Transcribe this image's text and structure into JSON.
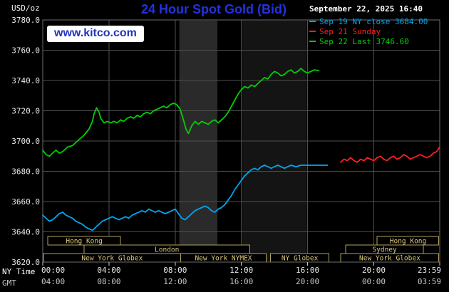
{
  "header": {
    "units": "USD/oz",
    "title": "24 Hour Spot Gold (Bid)",
    "datetime": "September 22, 2025 16:40",
    "watermark": "www.kitco.com"
  },
  "legend": {
    "items": [
      {
        "label": "Sep 19 NY close 3684.00",
        "color": "#00a6f0"
      },
      {
        "label": "Sep 21 Sunday",
        "color": "#ff2020"
      },
      {
        "label": "Sep 22 Last 3746.60",
        "color": "#00d000"
      }
    ]
  },
  "footer": {
    "ny_time_label": "NY Time",
    "gmt_label": "GMT"
  },
  "colors": {
    "background": "#000000",
    "plot_background": "#000000",
    "grid": "#4e4e4e",
    "border": "#6e6e6e",
    "axis_text": "#e8e8e8",
    "gmt_text": "#c8c8c8",
    "title": "#2233dd",
    "datetime": "#ffffff",
    "units": "#f0f0f0",
    "watermark_text": "#2233bb",
    "watermark_bg": "#ffffff",
    "session_border": "#b3a258",
    "session_text": "#d8c87c",
    "tick": "#cccccc",
    "ny_time_text": "#ffffff"
  },
  "chart_data": {
    "type": "line",
    "title": "24 Hour Spot Gold (Bid)",
    "ylabel": "USD/oz",
    "xlabel": "NY Time",
    "grid": true,
    "legend_position": "top-right",
    "ylim": [
      3620,
      3780
    ],
    "xlim": [
      0,
      23.983
    ],
    "y_ticks": [
      {
        "value": 3780,
        "label": "3780.0"
      },
      {
        "value": 3760,
        "label": "3760.0"
      },
      {
        "value": 3740,
        "label": "3740.0"
      },
      {
        "value": 3720,
        "label": "3720.0"
      },
      {
        "value": 3700,
        "label": "3700.0"
      },
      {
        "value": 3680,
        "label": "3680.0"
      },
      {
        "value": 3660,
        "label": "3660.0"
      },
      {
        "value": 3640,
        "label": "3640.0"
      },
      {
        "value": 3620,
        "label": "3620.0"
      }
    ],
    "x_ticks": [
      {
        "hour": 0,
        "ny": "00:00",
        "gmt": "04:00"
      },
      {
        "hour": 4,
        "ny": "04:00",
        "gmt": "08:00"
      },
      {
        "hour": 8,
        "ny": "08:00",
        "gmt": "12:00"
      },
      {
        "hour": 12,
        "ny": "12:00",
        "gmt": "16:00"
      },
      {
        "hour": 16,
        "ny": "16:00",
        "gmt": "20:00"
      },
      {
        "hour": 20,
        "ny": "20:00",
        "gmt": "00:00"
      },
      {
        "hour": 23.983,
        "ny": "23:59",
        "gmt": "03:59"
      }
    ],
    "bands": [
      {
        "start": 8.25,
        "end": 10.55,
        "color": "#2a2a2a"
      },
      {
        "start": 12.05,
        "end": 15.95,
        "color": "#141414"
      }
    ],
    "sessions": [
      {
        "label": "Hong Kong",
        "row": 0,
        "start": 0.3,
        "end": 4.7
      },
      {
        "label": "London",
        "row": 1,
        "start": 2.5,
        "end": 12.5
      },
      {
        "label": "New York Globex",
        "row": 2,
        "start": 0.05,
        "end": 8.33
      },
      {
        "label": "New York NYMEX",
        "row": 2,
        "start": 8.33,
        "end": 13.5
      },
      {
        "label": "NY Globex",
        "row": 2,
        "start": 13.75,
        "end": 17.3
      },
      {
        "label": "Sydney",
        "row": 1,
        "start": 18.3,
        "end": 23.0
      },
      {
        "label": "New York Globex",
        "row": 2,
        "start": 18.0,
        "end": 23.93
      },
      {
        "label": "Hong Kong",
        "row": 0,
        "start": 20.2,
        "end": 23.93
      }
    ],
    "series": [
      {
        "id": "sep19",
        "name": "Sep 19 NY close",
        "color": "#00a6f0",
        "close": 3684.0,
        "points": [
          [
            0,
            3651
          ],
          [
            0.2,
            3649
          ],
          [
            0.4,
            3647
          ],
          [
            0.6,
            3648
          ],
          [
            0.8,
            3650
          ],
          [
            1,
            3652
          ],
          [
            1.2,
            3653
          ],
          [
            1.4,
            3651
          ],
          [
            1.6,
            3650
          ],
          [
            1.8,
            3649
          ],
          [
            2,
            3647
          ],
          [
            2.2,
            3646
          ],
          [
            2.4,
            3645
          ],
          [
            2.6,
            3643
          ],
          [
            2.8,
            3642
          ],
          [
            3,
            3641
          ],
          [
            3.2,
            3643
          ],
          [
            3.4,
            3645
          ],
          [
            3.6,
            3647
          ],
          [
            3.8,
            3648
          ],
          [
            4,
            3649
          ],
          [
            4.2,
            3650
          ],
          [
            4.4,
            3649
          ],
          [
            4.6,
            3648
          ],
          [
            4.8,
            3649
          ],
          [
            5,
            3650
          ],
          [
            5.2,
            3649
          ],
          [
            5.4,
            3651
          ],
          [
            5.6,
            3652
          ],
          [
            5.8,
            3653
          ],
          [
            6,
            3654
          ],
          [
            6.2,
            3653
          ],
          [
            6.4,
            3655
          ],
          [
            6.6,
            3654
          ],
          [
            6.8,
            3653
          ],
          [
            7,
            3654
          ],
          [
            7.2,
            3653
          ],
          [
            7.4,
            3652
          ],
          [
            7.6,
            3653
          ],
          [
            7.8,
            3654
          ],
          [
            8,
            3655
          ],
          [
            8.2,
            3652
          ],
          [
            8.4,
            3649
          ],
          [
            8.6,
            3648
          ],
          [
            8.8,
            3650
          ],
          [
            9,
            3652
          ],
          [
            9.2,
            3654
          ],
          [
            9.4,
            3655
          ],
          [
            9.6,
            3656
          ],
          [
            9.8,
            3657
          ],
          [
            10,
            3656
          ],
          [
            10.2,
            3654
          ],
          [
            10.4,
            3653
          ],
          [
            10.6,
            3655
          ],
          [
            10.8,
            3656
          ],
          [
            11,
            3658
          ],
          [
            11.2,
            3661
          ],
          [
            11.4,
            3664
          ],
          [
            11.6,
            3668
          ],
          [
            11.8,
            3671
          ],
          [
            12,
            3674
          ],
          [
            12.2,
            3677
          ],
          [
            12.4,
            3679
          ],
          [
            12.6,
            3681
          ],
          [
            12.8,
            3682
          ],
          [
            13,
            3681
          ],
          [
            13.2,
            3683
          ],
          [
            13.4,
            3684
          ],
          [
            13.6,
            3683
          ],
          [
            13.8,
            3682
          ],
          [
            14,
            3683
          ],
          [
            14.2,
            3684
          ],
          [
            14.4,
            3683
          ],
          [
            14.6,
            3682
          ],
          [
            14.8,
            3683
          ],
          [
            15,
            3684
          ],
          [
            15.3,
            3683
          ],
          [
            15.6,
            3684
          ],
          [
            16,
            3684
          ],
          [
            16.5,
            3684
          ],
          [
            17,
            3684
          ],
          [
            17.2,
            3684
          ]
        ]
      },
      {
        "id": "sep21",
        "name": "Sep 21 Sunday",
        "color": "#ff2020",
        "points": [
          [
            18,
            3686
          ],
          [
            18.2,
            3688
          ],
          [
            18.4,
            3687
          ],
          [
            18.6,
            3689
          ],
          [
            18.8,
            3687
          ],
          [
            19,
            3686
          ],
          [
            19.2,
            3688
          ],
          [
            19.4,
            3687
          ],
          [
            19.6,
            3689
          ],
          [
            19.8,
            3688
          ],
          [
            20,
            3687
          ],
          [
            20.2,
            3689
          ],
          [
            20.4,
            3690
          ],
          [
            20.6,
            3688
          ],
          [
            20.8,
            3687
          ],
          [
            21,
            3689
          ],
          [
            21.2,
            3690
          ],
          [
            21.4,
            3688
          ],
          [
            21.6,
            3689
          ],
          [
            21.8,
            3691
          ],
          [
            22,
            3690
          ],
          [
            22.2,
            3688
          ],
          [
            22.4,
            3689
          ],
          [
            22.6,
            3690
          ],
          [
            22.8,
            3691
          ],
          [
            23,
            3690
          ],
          [
            23.2,
            3689
          ],
          [
            23.4,
            3690
          ],
          [
            23.6,
            3692
          ],
          [
            23.8,
            3693
          ],
          [
            23.98,
            3696
          ]
        ]
      },
      {
        "id": "sep22",
        "name": "Sep 22 Last",
        "color": "#00d000",
        "last": 3746.6,
        "points": [
          [
            0,
            3694
          ],
          [
            0.2,
            3691
          ],
          [
            0.4,
            3690
          ],
          [
            0.6,
            3692
          ],
          [
            0.8,
            3694
          ],
          [
            1,
            3692
          ],
          [
            1.2,
            3693
          ],
          [
            1.5,
            3696
          ],
          [
            1.8,
            3697
          ],
          [
            2,
            3699
          ],
          [
            2.2,
            3701
          ],
          [
            2.5,
            3704
          ],
          [
            2.8,
            3708
          ],
          [
            3,
            3713
          ],
          [
            3.1,
            3718
          ],
          [
            3.25,
            3722
          ],
          [
            3.4,
            3719
          ],
          [
            3.5,
            3715
          ],
          [
            3.7,
            3712
          ],
          [
            3.9,
            3713
          ],
          [
            4.1,
            3712
          ],
          [
            4.3,
            3713
          ],
          [
            4.5,
            3712
          ],
          [
            4.7,
            3714
          ],
          [
            4.9,
            3713
          ],
          [
            5.1,
            3715
          ],
          [
            5.3,
            3716
          ],
          [
            5.5,
            3715
          ],
          [
            5.7,
            3717
          ],
          [
            5.9,
            3716
          ],
          [
            6.1,
            3718
          ],
          [
            6.3,
            3719
          ],
          [
            6.5,
            3718
          ],
          [
            6.7,
            3720
          ],
          [
            6.9,
            3721
          ],
          [
            7.1,
            3722
          ],
          [
            7.3,
            3723
          ],
          [
            7.5,
            3722
          ],
          [
            7.7,
            3724
          ],
          [
            7.9,
            3725
          ],
          [
            8.1,
            3724
          ],
          [
            8.3,
            3721
          ],
          [
            8.5,
            3714
          ],
          [
            8.65,
            3708
          ],
          [
            8.8,
            3705
          ],
          [
            9,
            3710
          ],
          [
            9.2,
            3713
          ],
          [
            9.4,
            3711
          ],
          [
            9.6,
            3713
          ],
          [
            9.8,
            3712
          ],
          [
            10,
            3711
          ],
          [
            10.2,
            3713
          ],
          [
            10.4,
            3714
          ],
          [
            10.6,
            3712
          ],
          [
            10.8,
            3714
          ],
          [
            11,
            3716
          ],
          [
            11.2,
            3719
          ],
          [
            11.4,
            3723
          ],
          [
            11.6,
            3727
          ],
          [
            11.8,
            3731
          ],
          [
            12,
            3734
          ],
          [
            12.2,
            3736
          ],
          [
            12.4,
            3735
          ],
          [
            12.6,
            3737
          ],
          [
            12.8,
            3736
          ],
          [
            13,
            3738
          ],
          [
            13.2,
            3740
          ],
          [
            13.4,
            3742
          ],
          [
            13.6,
            3741
          ],
          [
            13.8,
            3744
          ],
          [
            14,
            3746
          ],
          [
            14.2,
            3745
          ],
          [
            14.4,
            3743
          ],
          [
            14.6,
            3744
          ],
          [
            14.8,
            3746
          ],
          [
            15,
            3747
          ],
          [
            15.2,
            3745
          ],
          [
            15.4,
            3746
          ],
          [
            15.6,
            3748
          ],
          [
            15.8,
            3746
          ],
          [
            16,
            3745
          ],
          [
            16.2,
            3746
          ],
          [
            16.4,
            3747
          ],
          [
            16.67,
            3746.6
          ]
        ]
      }
    ]
  }
}
